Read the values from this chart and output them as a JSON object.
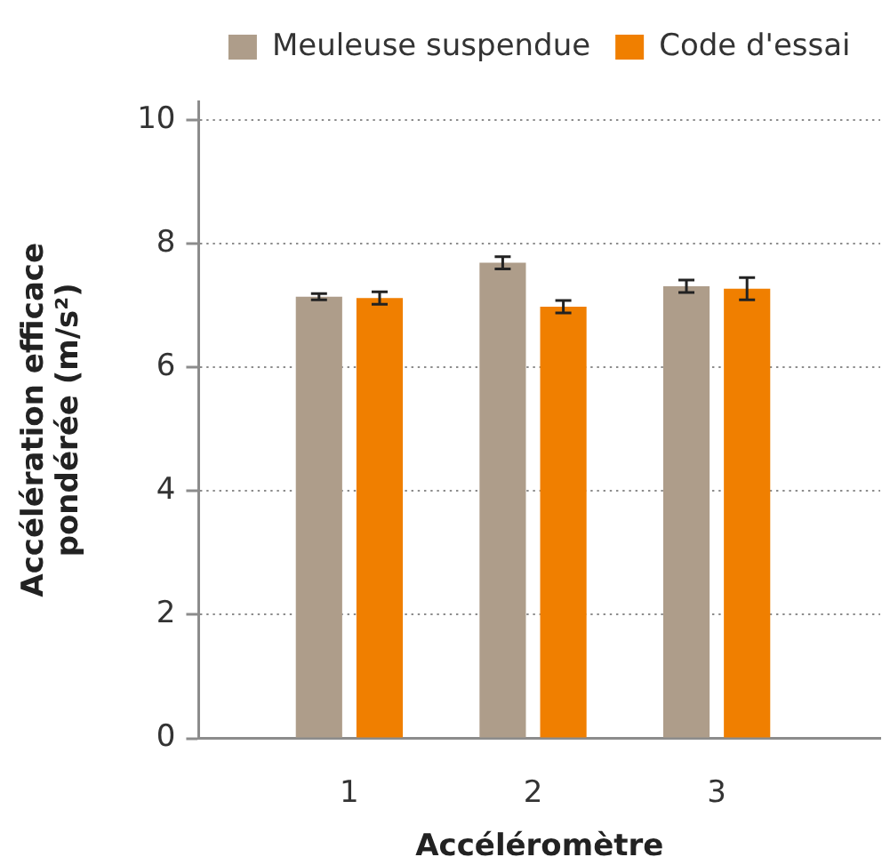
{
  "chart_data": {
    "type": "bar",
    "categories": [
      "1",
      "2",
      "3"
    ],
    "series": [
      {
        "name": "Meuleuse suspendue",
        "color": "#ae9d8a",
        "values": [
          7.14,
          7.69,
          7.31
        ],
        "errors": [
          0.05,
          0.1,
          0.1
        ]
      },
      {
        "name": "Code d'essai",
        "color": "#f07f00",
        "values": [
          7.12,
          6.98,
          7.27
        ],
        "errors": [
          0.1,
          0.1,
          0.18
        ]
      }
    ],
    "xlabel": "Accéléromètre",
    "ylabel": "Accélération efficace pondérée (m/s²)",
    "ylim": [
      0,
      10.3
    ],
    "yticks": [
      0,
      2,
      4,
      6,
      8,
      10
    ],
    "grid": "y",
    "legend": "top"
  }
}
